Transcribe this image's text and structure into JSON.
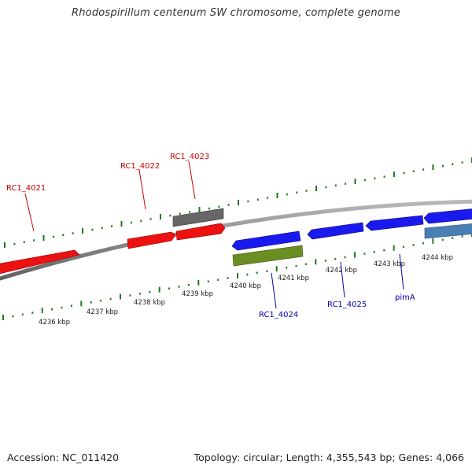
{
  "title": "Rhodospirillum centenum SW chromosome, complete genome",
  "footer": {
    "accession": "Accession: NC_011420",
    "topology": "Topology: circular; Length: 4,355,543 bp; Genes: 4,066"
  },
  "colors": {
    "backbone": "#8a8a8a",
    "tick": "#1f7a1f",
    "forward_label": "#cc0000",
    "reverse_label": "#0000aa"
  },
  "scale": {
    "tick_labels": [
      "4236 kbp",
      "4237 kbp",
      "4238 kbp",
      "4239 kbp",
      "4240 kbp",
      "4241 kbp",
      "4242 kbp",
      "4243 kbp",
      "4244 kbp"
    ]
  },
  "genes": [
    {
      "id": "gene-forward-1",
      "strand": "forward",
      "color": "#ee1111",
      "label": ""
    },
    {
      "id": "gene-forward-2",
      "strand": "forward",
      "color": "#ee1111",
      "label": ""
    },
    {
      "id": "gene-forward-3",
      "strand": "forward",
      "color": "#ee1111",
      "label": ""
    },
    {
      "id": "gene-forward-4",
      "strand": "forward",
      "color": "#666666",
      "label": ""
    },
    {
      "id": "gene-reverse-1",
      "strand": "reverse",
      "color": "#1a1aee",
      "label": ""
    },
    {
      "id": "gene-reverse-2",
      "strand": "reverse",
      "color": "#1a1aee",
      "label": ""
    },
    {
      "id": "gene-reverse-3",
      "strand": "reverse",
      "color": "#1a1aee",
      "label": ""
    },
    {
      "id": "gene-reverse-4",
      "strand": "reverse",
      "color": "#1a1aee",
      "label": ""
    },
    {
      "id": "gene-reverse-5",
      "strand": "reverse",
      "color": "#6b8e23",
      "label": ""
    },
    {
      "id": "gene-reverse-6",
      "strand": "reverse",
      "color": "#4a7fb5",
      "label": ""
    }
  ],
  "gene_labels": [
    "RC1_4021",
    "RC1_4022",
    "RC1_4023",
    "RC1_4024",
    "RC1_4025",
    "pimA"
  ]
}
